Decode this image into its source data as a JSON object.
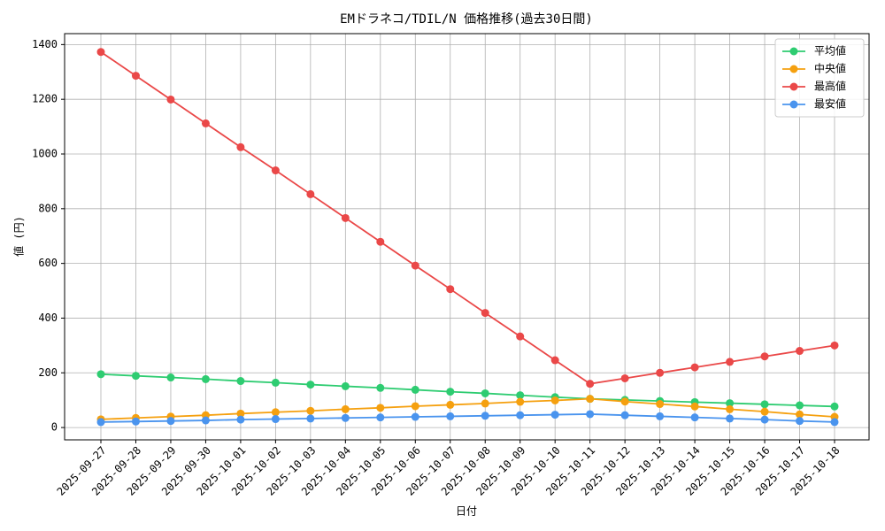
{
  "chart_data": {
    "type": "line",
    "title": "EMドラネコ/TDIL/N 価格推移(過去30日間)",
    "xlabel": "日付",
    "ylabel": "値 (円)",
    "categories": [
      "2025-09-27",
      "2025-09-28",
      "2025-09-29",
      "2025-09-30",
      "2025-10-01",
      "2025-10-02",
      "2025-10-03",
      "2025-10-04",
      "2025-10-05",
      "2025-10-06",
      "2025-10-07",
      "2025-10-08",
      "2025-10-09",
      "2025-10-10",
      "2025-10-11",
      "2025-10-12",
      "2025-10-13",
      "2025-10-14",
      "2025-10-15",
      "2025-10-16",
      "2025-10-17",
      "2025-10-18"
    ],
    "series": [
      {
        "name": "平均値",
        "color": "#2ecc71",
        "values": [
          195,
          189,
          183,
          177,
          170,
          164,
          157,
          151,
          145,
          138,
          131,
          125,
          118,
          111,
          105,
          101,
          97,
          93,
          89,
          85,
          81,
          77
        ]
      },
      {
        "name": "中央値",
        "color": "#f5a00f",
        "values": [
          30,
          35,
          40,
          45,
          51,
          56,
          61,
          67,
          72,
          78,
          83,
          88,
          94,
          99,
          105,
          95,
          86,
          77,
          67,
          58,
          48,
          39
        ]
      },
      {
        "name": "最高値",
        "color": "#ea4848",
        "values": [
          1373,
          1286,
          1199,
          1112,
          1025,
          940,
          853,
          766,
          679,
          592,
          506,
          419,
          333,
          246,
          160,
          180,
          200,
          220,
          240,
          260,
          280,
          300
        ]
      },
      {
        "name": "最安値",
        "color": "#4a94ee",
        "values": [
          20,
          22,
          24,
          26,
          29,
          31,
          33,
          35,
          37,
          39,
          41,
          43,
          45,
          47,
          49,
          45,
          41,
          37,
          33,
          29,
          24,
          20
        ]
      }
    ],
    "ylim": [
      -45,
      1440
    ],
    "yticks": [
      0,
      200,
      400,
      600,
      800,
      1000,
      1200,
      1400
    ],
    "grid": true,
    "legend": "upper right"
  }
}
